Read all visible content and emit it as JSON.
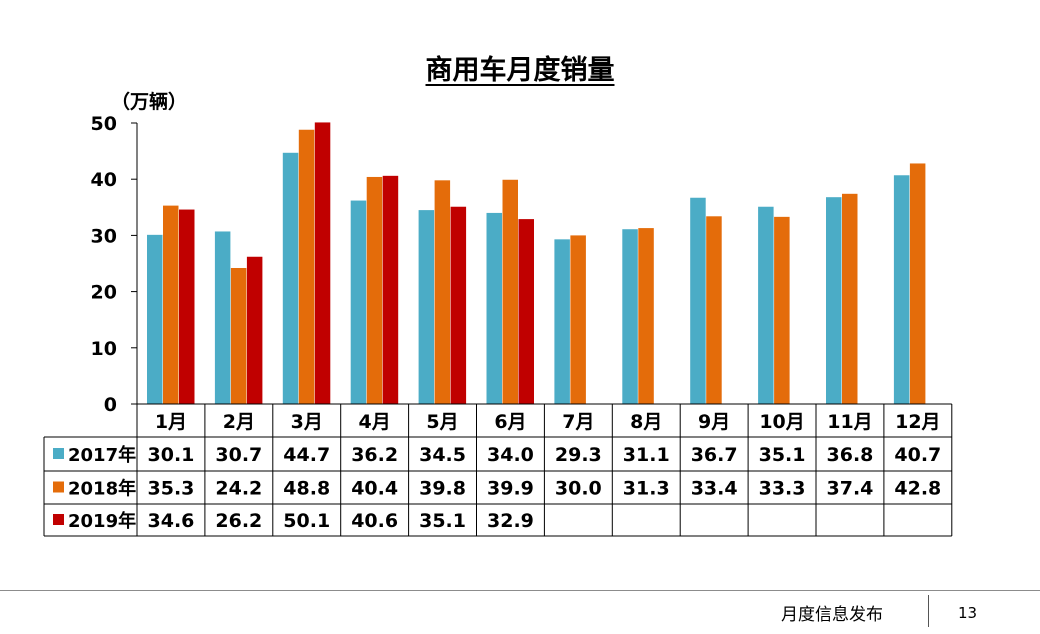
{
  "chart_data": {
    "type": "bar",
    "title": "商用车月度销量",
    "ylabel": "（万辆）",
    "ylim": [
      0,
      50
    ],
    "yticks": [
      "0",
      "10",
      "20",
      "30",
      "40",
      "50"
    ],
    "categories": [
      "1月",
      "2月",
      "3月",
      "4月",
      "5月",
      "6月",
      "7月",
      "8月",
      "9月",
      "10月",
      "11月",
      "12月"
    ],
    "series": [
      {
        "name": "2017年",
        "color": "#4bacc6",
        "values": [
          30.1,
          30.7,
          44.7,
          36.2,
          34.5,
          34.0,
          29.3,
          31.1,
          36.7,
          35.1,
          36.8,
          40.7
        ],
        "labels": [
          "30.1",
          "30.7",
          "44.7",
          "36.2",
          "34.5",
          "34.0",
          "29.3",
          "31.1",
          "36.7",
          "35.1",
          "36.8",
          "40.7"
        ]
      },
      {
        "name": "2018年",
        "color": "#e46c0a",
        "values": [
          35.3,
          24.2,
          48.8,
          40.4,
          39.8,
          39.9,
          30.0,
          31.3,
          33.4,
          33.3,
          37.4,
          42.8
        ],
        "labels": [
          "35.3",
          "24.2",
          "48.8",
          "40.4",
          "39.8",
          "39.9",
          "30.0",
          "31.3",
          "33.4",
          "33.3",
          "37.4",
          "42.8"
        ]
      },
      {
        "name": "2019年",
        "color": "#c00000",
        "values": [
          34.6,
          26.2,
          50.1,
          40.6,
          35.1,
          32.9,
          null,
          null,
          null,
          null,
          null,
          null
        ],
        "labels": [
          "34.6",
          "26.2",
          "50.1",
          "40.6",
          "35.1",
          "32.9",
          "",
          "",
          "",
          "",
          "",
          ""
        ]
      }
    ],
    "grid": false,
    "legend": "data-table"
  },
  "footer": {
    "text": "月度信息发布",
    "page": "13"
  }
}
